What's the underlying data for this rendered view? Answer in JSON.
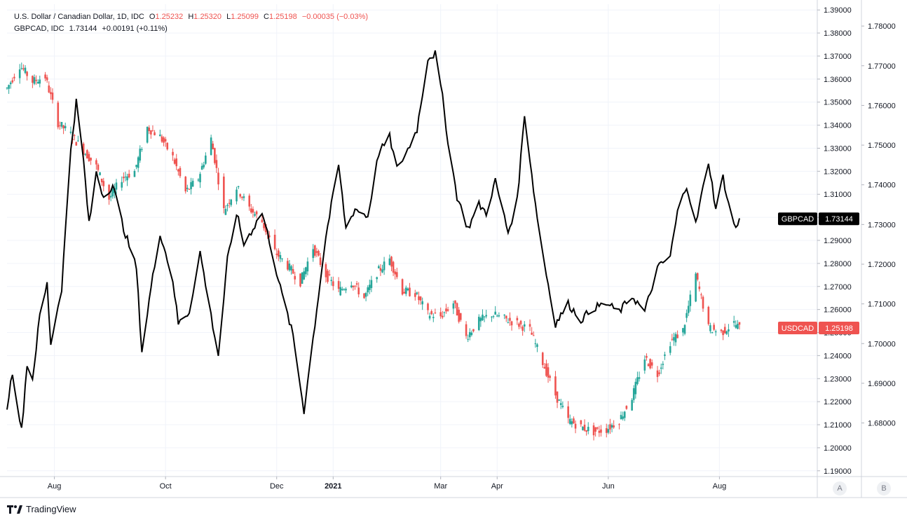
{
  "legend": {
    "usdcad": {
      "name": "U.S. Dollar / Canadian Dollar, 1D, IDC",
      "open_label": "O",
      "open": "1.25232",
      "high_label": "H",
      "high": "1.25320",
      "low_label": "L",
      "low": "1.25099",
      "close_label": "C",
      "close": "1.25198",
      "change": "−0.00035 (−0.03%)"
    },
    "gbpcad": {
      "name": "GBPCAD, IDC",
      "close": "1.73144",
      "change": "+0.00191 (+0.11%)"
    }
  },
  "brand": {
    "name": "TradingView"
  },
  "axis_buttons": {
    "a": "A",
    "b": "B"
  },
  "colors": {
    "up": "#26a69a",
    "down": "#ef5350",
    "gbpcad_line": "#000000",
    "grid": "#f0f3fa",
    "axis_text": "#131722",
    "usdcad_badge": "#ef5350",
    "gbpcad_badge": "#000000"
  },
  "chart_data": {
    "type": "line",
    "title": "U.S. Dollar / Canadian Dollar, 1D, IDC",
    "x_tick_labels": [
      "Aug",
      "Oct",
      "Dec",
      "2021",
      "Mar",
      "Apr",
      "Jun",
      "Aug"
    ],
    "x_tick_dates": [
      "2020-08-01",
      "2020-10-01",
      "2020-12-01",
      "2021-01-01",
      "2021-03-01",
      "2021-04-01",
      "2021-06-01",
      "2021-08-01"
    ],
    "x_range": [
      "2020-07-06",
      "2021-08-12"
    ],
    "grid": true,
    "axis_a": {
      "range": [
        1.1875,
        1.3925
      ],
      "ticks": [
        "1.19000",
        "1.20000",
        "1.21000",
        "1.22000",
        "1.23000",
        "1.24000",
        "1.25000",
        "1.26000",
        "1.27000",
        "1.28000",
        "1.29000",
        "1.30000",
        "1.31000",
        "1.32000",
        "1.33000",
        "1.34000",
        "1.35000",
        "1.36000",
        "1.37000",
        "1.38000",
        "1.39000"
      ]
    },
    "axis_b": {
      "range": [
        1.6665,
        1.7855
      ],
      "ticks": [
        "1.68000",
        "1.69000",
        "1.70000",
        "1.71000",
        "1.72000",
        "1.73000",
        "1.74000",
        "1.75000",
        "1.76000",
        "1.77000",
        "1.78000"
      ]
    },
    "series": [
      {
        "name": "USDCAD",
        "axis": "A",
        "style": "candles",
        "last_value": "1.25198",
        "keypoints": [
          [
            "2020-07-06",
            1.356
          ],
          [
            "2020-07-13",
            1.366
          ],
          [
            "2020-07-20",
            1.359
          ],
          [
            "2020-07-27",
            1.361
          ],
          [
            "2020-08-03",
            1.341
          ],
          [
            "2020-08-10",
            1.336
          ],
          [
            "2020-08-17",
            1.329
          ],
          [
            "2020-08-24",
            1.322
          ],
          [
            "2020-08-31",
            1.308
          ],
          [
            "2020-09-07",
            1.317
          ],
          [
            "2020-09-14",
            1.32
          ],
          [
            "2020-09-21",
            1.339
          ],
          [
            "2020-09-28",
            1.335
          ],
          [
            "2020-10-05",
            1.326
          ],
          [
            "2020-10-12",
            1.311
          ],
          [
            "2020-10-19",
            1.317
          ],
          [
            "2020-10-26",
            1.334
          ],
          [
            "2020-11-02",
            1.303
          ],
          [
            "2020-11-09",
            1.313
          ],
          [
            "2020-11-16",
            1.304
          ],
          [
            "2020-11-23",
            1.298
          ],
          [
            "2020-11-30",
            1.285
          ],
          [
            "2020-12-07",
            1.279
          ],
          [
            "2020-12-14",
            1.272
          ],
          [
            "2020-12-21",
            1.287
          ],
          [
            "2020-12-28",
            1.275
          ],
          [
            "2021-01-04",
            1.268
          ],
          [
            "2021-01-11",
            1.272
          ],
          [
            "2021-01-18",
            1.265
          ],
          [
            "2021-01-25",
            1.276
          ],
          [
            "2021-02-01",
            1.282
          ],
          [
            "2021-02-08",
            1.268
          ],
          [
            "2021-02-15",
            1.267
          ],
          [
            "2021-02-22",
            1.258
          ],
          [
            "2021-03-01",
            1.257
          ],
          [
            "2021-03-08",
            1.263
          ],
          [
            "2021-03-15",
            1.248
          ],
          [
            "2021-03-22",
            1.255
          ],
          [
            "2021-03-29",
            1.258
          ],
          [
            "2021-04-05",
            1.256
          ],
          [
            "2021-04-12",
            1.254
          ],
          [
            "2021-04-19",
            1.251
          ],
          [
            "2021-04-26",
            1.237
          ],
          [
            "2021-05-03",
            1.223
          ],
          [
            "2021-05-10",
            1.212
          ],
          [
            "2021-05-17",
            1.209
          ],
          [
            "2021-05-24",
            1.207
          ],
          [
            "2021-05-31",
            1.208
          ],
          [
            "2021-06-07",
            1.212
          ],
          [
            "2021-06-14",
            1.222
          ],
          [
            "2021-06-21",
            1.239
          ],
          [
            "2021-06-28",
            1.232
          ],
          [
            "2021-07-05",
            1.246
          ],
          [
            "2021-07-12",
            1.251
          ],
          [
            "2021-07-19",
            1.275
          ],
          [
            "2021-07-26",
            1.252
          ],
          [
            "2021-08-02",
            1.25
          ],
          [
            "2021-08-09",
            1.254
          ],
          [
            "2021-08-12",
            1.252
          ]
        ]
      },
      {
        "name": "GBPCAD",
        "axis": "B",
        "style": "line",
        "last_value": "1.73144",
        "keypoints": [
          [
            "2020-07-06",
            1.684
          ],
          [
            "2020-07-09",
            1.693
          ],
          [
            "2020-07-14",
            1.678
          ],
          [
            "2020-07-17",
            1.695
          ],
          [
            "2020-07-20",
            1.691
          ],
          [
            "2020-07-24",
            1.707
          ],
          [
            "2020-07-28",
            1.715
          ],
          [
            "2020-07-30",
            1.7
          ],
          [
            "2020-08-05",
            1.714
          ],
          [
            "2020-08-10",
            1.749
          ],
          [
            "2020-08-13",
            1.761
          ],
          [
            "2020-08-17",
            1.746
          ],
          [
            "2020-08-20",
            1.73
          ],
          [
            "2020-08-24",
            1.743
          ],
          [
            "2020-08-28",
            1.737
          ],
          [
            "2020-09-02",
            1.74
          ],
          [
            "2020-09-08",
            1.729
          ],
          [
            "2020-09-15",
            1.719
          ],
          [
            "2020-09-18",
            1.698
          ],
          [
            "2020-09-23",
            1.714
          ],
          [
            "2020-09-28",
            1.728
          ],
          [
            "2020-10-05",
            1.716
          ],
          [
            "2020-10-08",
            1.705
          ],
          [
            "2020-10-14",
            1.708
          ],
          [
            "2020-10-20",
            1.723
          ],
          [
            "2020-10-26",
            1.707
          ],
          [
            "2020-10-30",
            1.697
          ],
          [
            "2020-11-04",
            1.721
          ],
          [
            "2020-11-09",
            1.733
          ],
          [
            "2020-11-13",
            1.725
          ],
          [
            "2020-11-18",
            1.729
          ],
          [
            "2020-11-23",
            1.733
          ],
          [
            "2020-11-27",
            1.726
          ],
          [
            "2020-12-03",
            1.714
          ],
          [
            "2020-12-10",
            1.702
          ],
          [
            "2020-12-16",
            1.683
          ],
          [
            "2020-12-22",
            1.705
          ],
          [
            "2020-12-28",
            1.727
          ],
          [
            "2021-01-04",
            1.745
          ],
          [
            "2021-01-08",
            1.729
          ],
          [
            "2021-01-13",
            1.734
          ],
          [
            "2021-01-20",
            1.732
          ],
          [
            "2021-01-26",
            1.748
          ],
          [
            "2021-02-01",
            1.752
          ],
          [
            "2021-02-05",
            1.744
          ],
          [
            "2021-02-10",
            1.748
          ],
          [
            "2021-02-16",
            1.754
          ],
          [
            "2021-02-22",
            1.772
          ],
          [
            "2021-02-26",
            1.773
          ],
          [
            "2021-03-02",
            1.762
          ],
          [
            "2021-03-05",
            1.751
          ],
          [
            "2021-03-10",
            1.737
          ],
          [
            "2021-03-16",
            1.729
          ],
          [
            "2021-03-22",
            1.735
          ],
          [
            "2021-03-26",
            1.733
          ],
          [
            "2021-03-31",
            1.741
          ],
          [
            "2021-04-07",
            1.728
          ],
          [
            "2021-04-12",
            1.736
          ],
          [
            "2021-04-16",
            1.758
          ],
          [
            "2021-04-22",
            1.735
          ],
          [
            "2021-04-27",
            1.72
          ],
          [
            "2021-05-03",
            1.705
          ],
          [
            "2021-05-10",
            1.71
          ],
          [
            "2021-05-17",
            1.706
          ],
          [
            "2021-05-24",
            1.709
          ],
          [
            "2021-05-31",
            1.71
          ],
          [
            "2021-06-07",
            1.708
          ],
          [
            "2021-06-14",
            1.712
          ],
          [
            "2021-06-21",
            1.708
          ],
          [
            "2021-06-28",
            1.719
          ],
          [
            "2021-07-05",
            1.722
          ],
          [
            "2021-07-09",
            1.733
          ],
          [
            "2021-07-14",
            1.74
          ],
          [
            "2021-07-19",
            1.73
          ],
          [
            "2021-07-26",
            1.746
          ],
          [
            "2021-07-30",
            1.734
          ],
          [
            "2021-08-03",
            1.742
          ],
          [
            "2021-08-06",
            1.735
          ],
          [
            "2021-08-10",
            1.729
          ],
          [
            "2021-08-12",
            1.731
          ]
        ]
      }
    ]
  }
}
